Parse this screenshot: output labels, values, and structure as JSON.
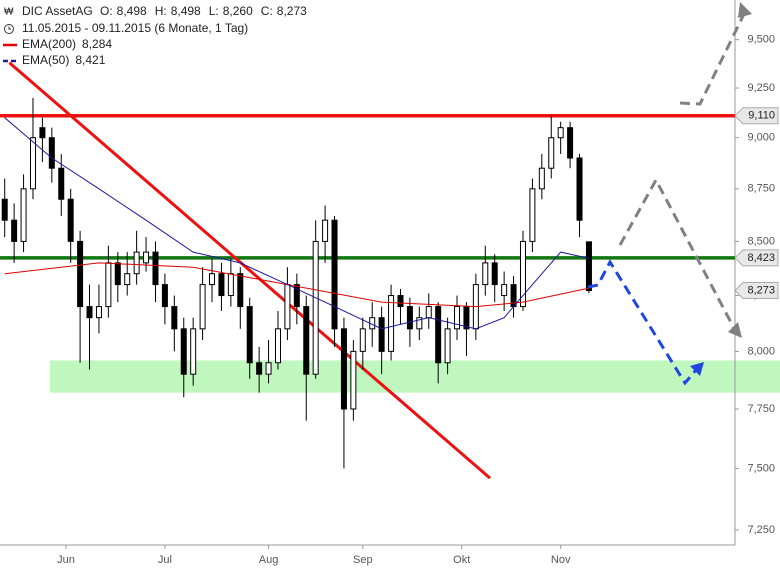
{
  "chart_data": {
    "type": "candlestick",
    "title": "DIC AssetAG",
    "ohlc_labels": [
      {
        "label": "O:",
        "value": "8,498"
      },
      {
        "label": "H:",
        "value": "8,498"
      },
      {
        "label": "L:",
        "value": "8,260"
      },
      {
        "label": "C:",
        "value": "8,273"
      }
    ],
    "subtitle": "11.05.2015 - 09.11.2015 (6 Monate, 1 Tag)",
    "log_scale": true,
    "ylim": [
      7.19,
      9.71
    ],
    "yticks": [
      {
        "value": 7.25,
        "label": "7,250"
      },
      {
        "value": 7.5,
        "label": "7,500"
      },
      {
        "value": 7.75,
        "label": "7,750"
      },
      {
        "value": 8,
        "label": "8,000"
      },
      {
        "value": 8.25,
        "label": "8,250"
      },
      {
        "value": 8.5,
        "label": "8,500"
      },
      {
        "value": 8.75,
        "label": "8,750"
      },
      {
        "value": 9,
        "label": "9,000"
      },
      {
        "value": 9.25,
        "label": "9,250"
      },
      {
        "value": 9.5,
        "label": "9,500"
      }
    ],
    "xlim": [
      -1,
      155
    ],
    "xticks": [
      {
        "value": 13,
        "label": "Jun"
      },
      {
        "value": 34,
        "label": "Jul"
      },
      {
        "value": 56,
        "label": "Aug"
      },
      {
        "value": 76,
        "label": "Sep"
      },
      {
        "value": 97,
        "label": "Okt"
      },
      {
        "value": 118,
        "label": "Nov"
      }
    ],
    "x": [
      0,
      2,
      4,
      6,
      8,
      10,
      12,
      14,
      16,
      18,
      20,
      22,
      24,
      26,
      28,
      30,
      32,
      34,
      36,
      38,
      40,
      42,
      44,
      46,
      48,
      50,
      52,
      54,
      56,
      58,
      60,
      62,
      64,
      66,
      68,
      70,
      72,
      74,
      76,
      78,
      80,
      82,
      84,
      86,
      88,
      90,
      92,
      94,
      96,
      98,
      100,
      102,
      104,
      106,
      108,
      110,
      112,
      114,
      116,
      118,
      120,
      122,
      124
    ],
    "candles": [
      [
        8.7,
        8.8,
        8.52,
        8.6
      ],
      [
        8.6,
        8.68,
        8.4,
        8.5
      ],
      [
        8.5,
        8.82,
        8.45,
        8.75
      ],
      [
        8.75,
        9.2,
        8.7,
        9.0
      ],
      [
        9.05,
        9.1,
        8.88,
        9.0
      ],
      [
        9.0,
        9.05,
        8.78,
        8.85
      ],
      [
        8.85,
        8.92,
        8.62,
        8.7
      ],
      [
        8.7,
        8.75,
        8.4,
        8.5
      ],
      [
        8.5,
        8.55,
        7.95,
        8.2
      ],
      [
        8.2,
        8.3,
        7.92,
        8.15
      ],
      [
        8.15,
        8.3,
        8.08,
        8.2
      ],
      [
        8.2,
        8.48,
        8.15,
        8.4
      ],
      [
        8.4,
        8.45,
        8.22,
        8.3
      ],
      [
        8.3,
        8.45,
        8.25,
        8.35
      ],
      [
        8.35,
        8.55,
        8.3,
        8.45
      ],
      [
        8.4,
        8.52,
        8.36,
        8.45
      ],
      [
        8.45,
        8.5,
        8.22,
        8.3
      ],
      [
        8.3,
        8.35,
        8.12,
        8.2
      ],
      [
        8.2,
        8.25,
        8.0,
        8.1
      ],
      [
        8.1,
        8.15,
        7.8,
        7.9
      ],
      [
        7.9,
        8.15,
        7.85,
        8.1
      ],
      [
        8.1,
        8.38,
        8.05,
        8.3
      ],
      [
        8.3,
        8.42,
        8.22,
        8.35
      ],
      [
        8.35,
        8.4,
        8.18,
        8.25
      ],
      [
        8.25,
        8.42,
        8.2,
        8.35
      ],
      [
        8.35,
        8.38,
        8.1,
        8.2
      ],
      [
        8.2,
        8.24,
        7.88,
        7.95
      ],
      [
        7.95,
        8.02,
        7.82,
        7.9
      ],
      [
        7.9,
        8.05,
        7.86,
        7.95
      ],
      [
        7.95,
        8.18,
        7.92,
        8.1
      ],
      [
        8.1,
        8.38,
        8.05,
        8.3
      ],
      [
        8.3,
        8.35,
        8.12,
        8.2
      ],
      [
        8.2,
        8.25,
        7.7,
        7.9
      ],
      [
        7.9,
        8.6,
        7.88,
        8.5
      ],
      [
        8.5,
        8.67,
        8.4,
        8.6
      ],
      [
        8.6,
        8.62,
        8.02,
        8.1
      ],
      [
        8.1,
        8.15,
        7.5,
        7.75
      ],
      [
        7.75,
        8.05,
        7.7,
        8.0
      ],
      [
        8.0,
        8.15,
        7.92,
        8.1
      ],
      [
        8.1,
        8.22,
        8.02,
        8.15
      ],
      [
        8.15,
        8.2,
        7.9,
        8.0
      ],
      [
        8.0,
        8.3,
        7.96,
        8.25
      ],
      [
        8.25,
        8.28,
        8.12,
        8.2
      ],
      [
        8.2,
        8.24,
        8.02,
        8.1
      ],
      [
        8.1,
        8.2,
        8.05,
        8.15
      ],
      [
        8.15,
        8.26,
        8.1,
        8.2
      ],
      [
        8.2,
        8.22,
        7.86,
        7.95
      ],
      [
        7.95,
        8.15,
        7.9,
        8.1
      ],
      [
        8.1,
        8.25,
        8.05,
        8.2
      ],
      [
        8.2,
        8.22,
        7.98,
        8.1
      ],
      [
        8.1,
        8.35,
        8.05,
        8.3
      ],
      [
        8.3,
        8.48,
        8.25,
        8.4
      ],
      [
        8.4,
        8.44,
        8.22,
        8.3
      ],
      [
        8.25,
        8.36,
        8.18,
        8.3
      ],
      [
        8.3,
        8.34,
        8.15,
        8.2
      ],
      [
        8.2,
        8.55,
        8.18,
        8.5
      ],
      [
        8.5,
        8.8,
        8.45,
        8.75
      ],
      [
        8.75,
        8.92,
        8.7,
        8.85
      ],
      [
        8.85,
        9.11,
        8.8,
        9.0
      ],
      [
        9.0,
        9.08,
        8.92,
        9.05
      ],
      [
        9.05,
        9.08,
        8.85,
        8.9
      ],
      [
        8.9,
        8.92,
        8.52,
        8.6
      ],
      [
        8.498,
        8.498,
        8.26,
        8.273
      ]
    ],
    "last_label": "8,273",
    "series": [
      {
        "name": "EMA(200)",
        "legend_value": "8,284",
        "color": "#e00000",
        "dash": false,
        "x": [
          0,
          20,
          40,
          60,
          80,
          100,
          110,
          124
        ],
        "values": [
          8.35,
          8.4,
          8.38,
          8.3,
          8.22,
          8.2,
          8.22,
          8.284
        ]
      },
      {
        "name": "EMA(50)",
        "legend_value": "8,421",
        "color": "#1a1aa0",
        "dash": true,
        "x": [
          0,
          10,
          20,
          30,
          40,
          50,
          60,
          70,
          80,
          90,
          100,
          106,
          112,
          118,
          124
        ],
        "values": [
          9.1,
          8.9,
          8.75,
          8.6,
          8.45,
          8.4,
          8.3,
          8.2,
          8.1,
          8.15,
          8.1,
          8.15,
          8.3,
          8.45,
          8.421
        ]
      }
    ],
    "levels": [
      {
        "value": 9.11,
        "label": "9,110",
        "color": "#ee1111"
      },
      {
        "value": 8.423,
        "label": "8,423",
        "color": "#117711"
      }
    ],
    "zone": {
      "low": 7.82,
      "high": 7.96,
      "color": "#bff7bf"
    },
    "trend_line": {
      "x": [
        1,
        103
      ],
      "values": [
        9.38,
        7.46
      ],
      "color": "#ee1111"
    }
  }
}
